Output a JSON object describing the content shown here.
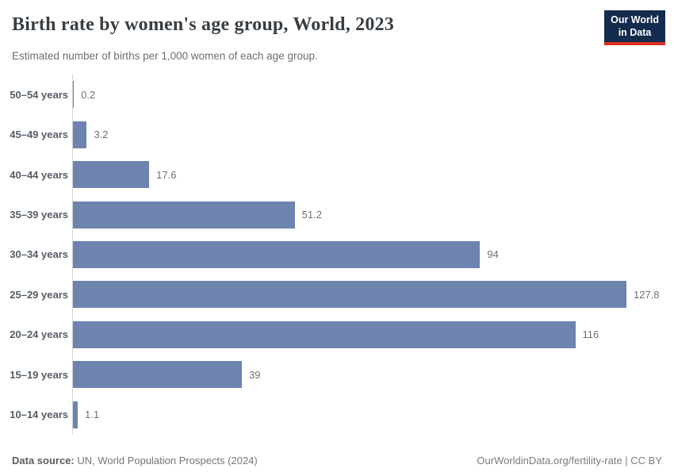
{
  "header": {
    "title": "Birth rate by women's age group, World, 2023",
    "subtitle": "Estimated number of births per 1,000 women of each age group.",
    "logo": {
      "line1": "Our World",
      "line2": "in Data"
    }
  },
  "chart_data": {
    "type": "bar",
    "orientation": "horizontal",
    "title": "Birth rate by women's age group, World, 2023",
    "xlabel": "",
    "ylabel": "",
    "grid": false,
    "xlim": [
      0,
      127.8
    ],
    "bar_color": "#6c84ae",
    "axis_color": "#cfd4da",
    "categories": [
      "50–54 years",
      "45–49 years",
      "40–44 years",
      "35–39 years",
      "30–34 years",
      "25–29 years",
      "20–24 years",
      "15–19 years",
      "10–14 years"
    ],
    "values": [
      0.2,
      3.2,
      17.6,
      51.2,
      94,
      127.8,
      116,
      39,
      1.1
    ],
    "value_labels": [
      "0.2",
      "3.2",
      "17.6",
      "51.2",
      "94",
      "127.8",
      "116",
      "39",
      "1.1"
    ]
  },
  "footer": {
    "source_label": "Data source:",
    "source_text": " UN, World Population Prospects (2024)",
    "credit": "OurWorldinData.org/fertility-rate | CC BY"
  }
}
